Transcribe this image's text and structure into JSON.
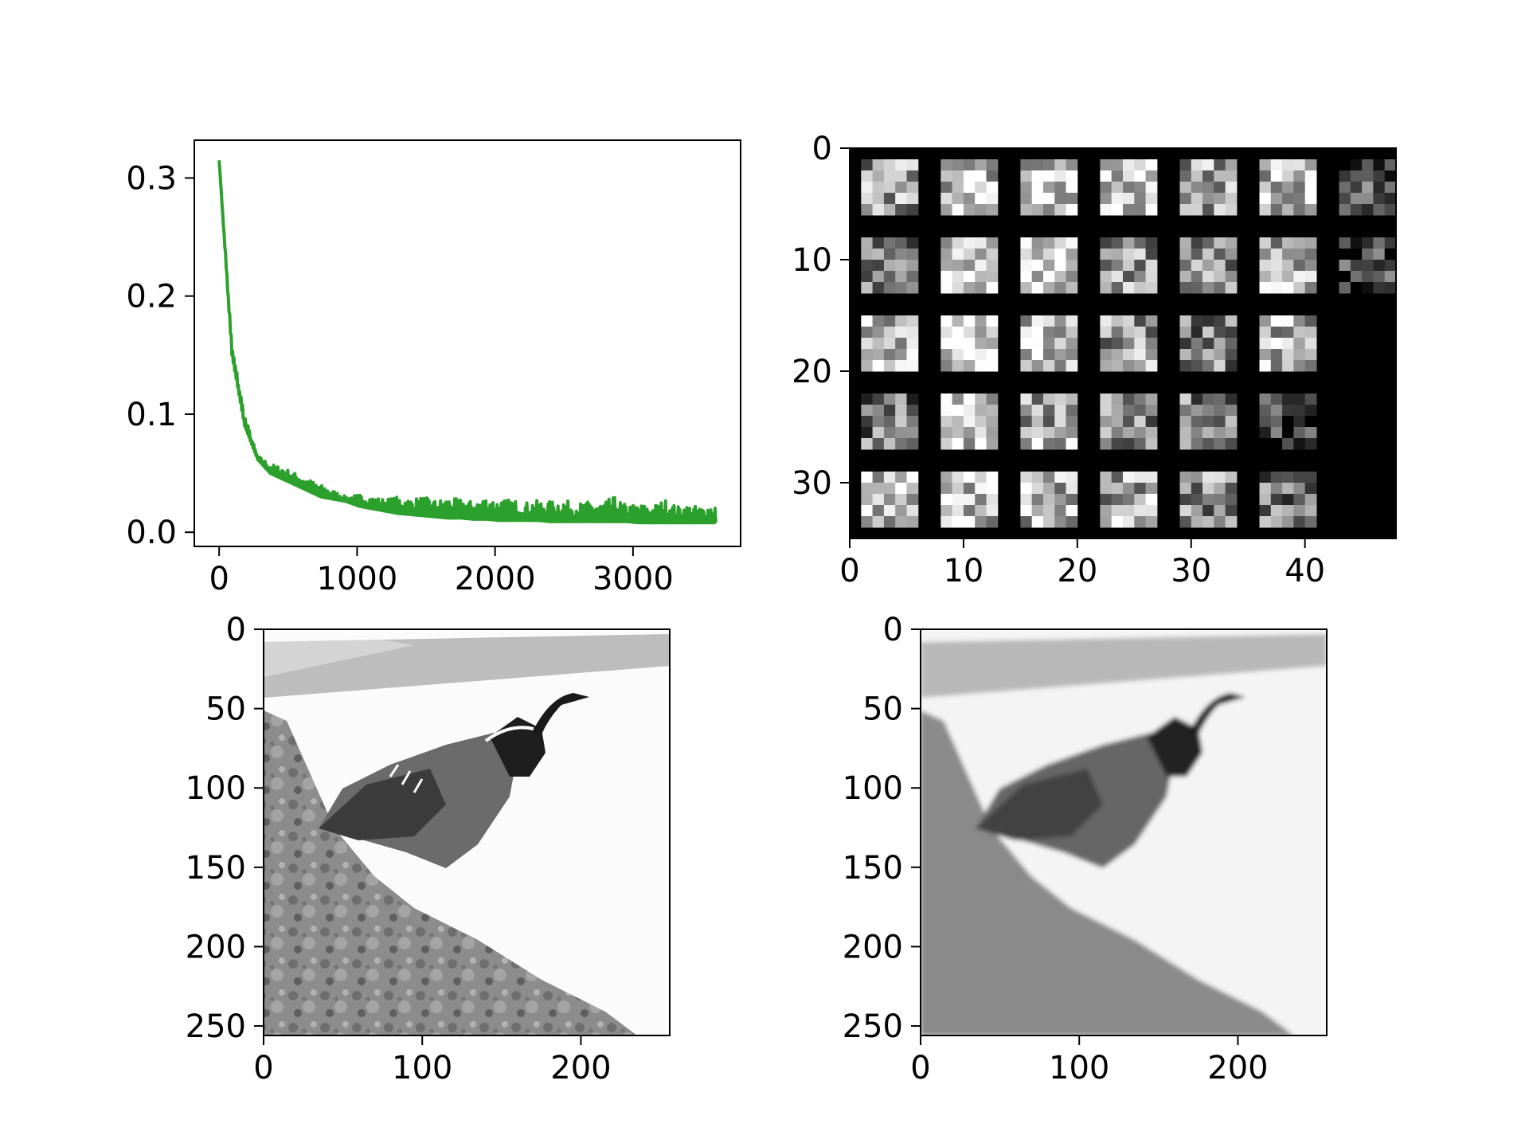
{
  "chart_data": [
    {
      "type": "line",
      "title": "",
      "xlabel": "",
      "ylabel": "",
      "xlim": [
        -180,
        3780
      ],
      "ylim": [
        -0.012,
        0.332
      ],
      "xticks": [
        0,
        1000,
        2000,
        3000
      ],
      "xtick_labels": [
        "0",
        "1000",
        "2000",
        "3000"
      ],
      "yticks": [
        0.0,
        0.1,
        0.2,
        0.3
      ],
      "ytick_labels": [
        "0.0",
        "0.1",
        "0.2",
        "0.3"
      ],
      "grid": false,
      "legend": "none",
      "color": "#2ca02c",
      "series": [
        {
          "x_start": 0,
          "x_end": 3600,
          "values": [
            0.315,
            0.15,
            0.09,
            0.062,
            0.05,
            0.045,
            0.04,
            0.035,
            0.03,
            0.028,
            0.026,
            0.022,
            0.02,
            0.018,
            0.016,
            0.015,
            0.014,
            0.013,
            0.012,
            0.012,
            0.011,
            0.011,
            0.01,
            0.01,
            0.01,
            0.01,
            0.009,
            0.009,
            0.009,
            0.009,
            0.009,
            0.009,
            0.009,
            0.008,
            0.008,
            0.008,
            0.008,
            0.008,
            0.008,
            0.008
          ],
          "peak_values": [
            0.315,
            0.16,
            0.1,
            0.065,
            0.058,
            0.055,
            0.05,
            0.045,
            0.04,
            0.035,
            0.03,
            0.032,
            0.03,
            0.028,
            0.03,
            0.028,
            0.03,
            0.027,
            0.029,
            0.028,
            0.026,
            0.03,
            0.027,
            0.028,
            0.025,
            0.027,
            0.026,
            0.028,
            0.024,
            0.026,
            0.025,
            0.03,
            0.023,
            0.024,
            0.022,
            0.028,
            0.022,
            0.023,
            0.021,
            0.025
          ]
        }
      ]
    },
    {
      "type": "heatmap",
      "title": "",
      "xlim": [
        0,
        48
      ],
      "ylim": [
        35,
        0
      ],
      "xticks": [
        0,
        10,
        20,
        30,
        40
      ],
      "xtick_labels": [
        "0",
        "10",
        "20",
        "30",
        "40"
      ],
      "yticks": [
        0,
        10,
        20,
        30
      ],
      "ytick_labels": [
        "0",
        "10",
        "20",
        "30"
      ],
      "grid_rows": 5,
      "grid_cols": 7,
      "tile_size": 5,
      "tile_pitch": 7,
      "tile_count": 32,
      "background": "#000000",
      "tile_brightness": [
        [
          0.6,
          0.75,
          0.8,
          0.8,
          0.65,
          0.75,
          0.3
        ],
        [
          0.45,
          0.85,
          0.85,
          0.6,
          0.55,
          0.7,
          0.25
        ],
        [
          0.7,
          0.85,
          0.75,
          0.6,
          0.5,
          0.7,
          0.0
        ],
        [
          0.45,
          0.8,
          0.65,
          0.55,
          0.5,
          0.2,
          0.0
        ],
        [
          0.75,
          0.75,
          0.7,
          0.65,
          0.55,
          0.45,
          0.0
        ]
      ]
    },
    {
      "type": "heatmap",
      "title": "",
      "description_channel": "grayscale image",
      "xlim": [
        0,
        256
      ],
      "ylim": [
        256,
        0
      ],
      "xticks": [
        0,
        100,
        200
      ],
      "xtick_labels": [
        "0",
        "100",
        "200"
      ],
      "yticks": [
        0,
        50,
        100,
        150,
        200,
        250
      ],
      "ytick_labels": [
        "0",
        "50",
        "100",
        "150",
        "200",
        "250"
      ]
    },
    {
      "type": "heatmap",
      "title": "",
      "description_channel": "grayscale image",
      "xlim": [
        0,
        256
      ],
      "ylim": [
        256,
        0
      ],
      "xticks": [
        0,
        100,
        200
      ],
      "xtick_labels": [
        "0",
        "100",
        "200"
      ],
      "yticks": [
        0,
        50,
        100,
        150,
        200,
        250
      ],
      "ytick_labels": [
        "0",
        "50",
        "100",
        "150",
        "200",
        "250"
      ]
    }
  ]
}
